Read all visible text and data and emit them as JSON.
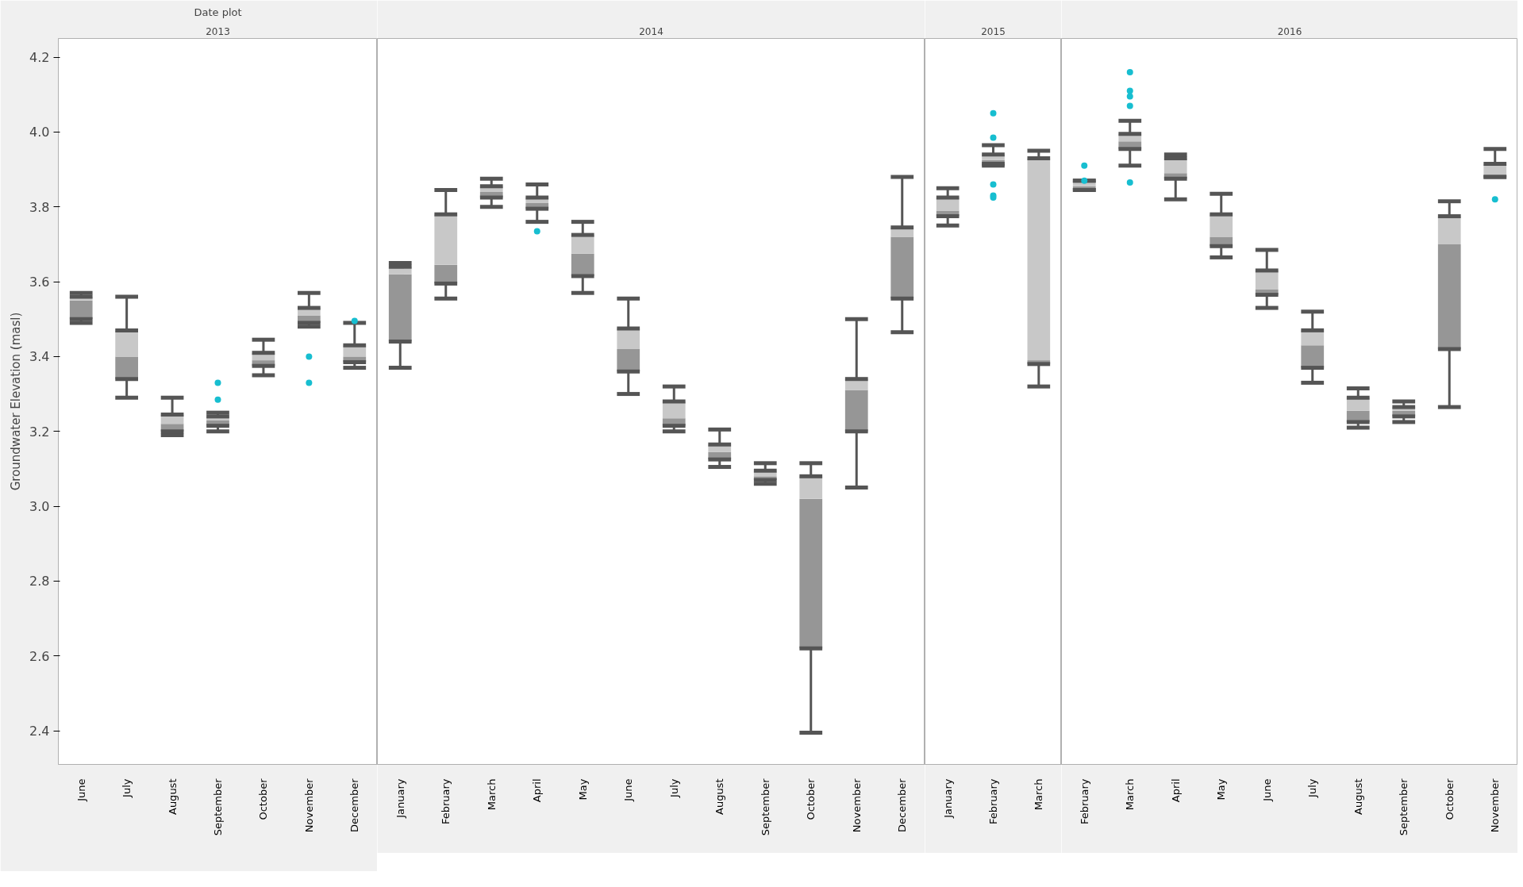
{
  "chart_data": [
    {
      "type": "box",
      "title": "Date plot",
      "subtitle": "2013",
      "ylabel": "Groundwater Elevation (masl)",
      "ylim": [
        2.31,
        4.25
      ],
      "yticks": [
        2.4,
        2.6,
        2.8,
        {
          "value": 3,
          "label": "3.0"
        },
        3.2,
        3.4,
        3.6,
        3.8,
        {
          "value": 4,
          "label": "4.0"
        },
        4.2
      ],
      "grid": false,
      "categories": [
        "June",
        "July",
        "August",
        "September",
        "October",
        "November",
        "December"
      ],
      "series": [
        {
          "color": "#969696",
          "boxes": [
            {
              "low": 3.49,
              "q1": 3.5,
              "median": 3.55,
              "q3": 3.56,
              "high": 3.57
            },
            {
              "low": 3.29,
              "q1": 3.34,
              "median": 3.4,
              "q3": 3.47,
              "high": 3.56
            },
            {
              "low": 3.19,
              "q1": 3.2,
              "median": 3.22,
              "q3": 3.245,
              "high": 3.29
            },
            {
              "low": 3.2,
              "q1": 3.215,
              "median": 3.23,
              "q3": 3.24,
              "high": 3.25,
              "outliers": [
                3.33,
                3.285
              ]
            },
            {
              "low": 3.35,
              "q1": 3.375,
              "median": 3.39,
              "q3": 3.41,
              "high": 3.445
            },
            {
              "low": 3.48,
              "q1": 3.49,
              "median": 3.51,
              "q3": 3.53,
              "high": 3.57,
              "outliers": [
                3.4,
                3.33
              ]
            },
            {
              "low": 3.37,
              "q1": 3.385,
              "median": 3.4,
              "q3": 3.43,
              "high": 3.49,
              "outliers": [
                3.495
              ]
            }
          ]
        }
      ]
    },
    {
      "type": "box",
      "subtitle": "2014",
      "ylim": [
        2.31,
        4.25
      ],
      "yticks": [
        2.4,
        2.6,
        2.8,
        3.0,
        3.2,
        3.4,
        3.6,
        3.8,
        4.0,
        4.2
      ],
      "grid": false,
      "tick_labels": "x",
      "categories": [
        "January",
        "February",
        "March",
        "April",
        "May",
        "June",
        "July",
        "August",
        "September",
        "October",
        "November",
        "December"
      ],
      "series": [
        {
          "color": "#969696",
          "boxes": [
            {
              "low": 3.37,
              "q1": 3.44,
              "median": 3.62,
              "q3": 3.64,
              "high": 3.65
            },
            {
              "low": 3.555,
              "q1": 3.595,
              "median": 3.645,
              "q3": 3.78,
              "high": 3.845
            },
            {
              "low": 3.8,
              "q1": 3.825,
              "median": 3.84,
              "q3": 3.855,
              "high": 3.875
            },
            {
              "low": 3.76,
              "q1": 3.795,
              "median": 3.81,
              "q3": 3.825,
              "high": 3.86,
              "outliers": [
                3.735
              ]
            },
            {
              "low": 3.57,
              "q1": 3.615,
              "median": 3.675,
              "q3": 3.725,
              "high": 3.76
            },
            {
              "low": 3.3,
              "q1": 3.36,
              "median": 3.42,
              "q3": 3.475,
              "high": 3.555
            },
            {
              "low": 3.2,
              "q1": 3.215,
              "median": 3.235,
              "q3": 3.28,
              "high": 3.32
            },
            {
              "low": 3.105,
              "q1": 3.125,
              "median": 3.145,
              "q3": 3.165,
              "high": 3.205
            },
            {
              "low": 3.06,
              "q1": 3.07,
              "median": 3.08,
              "q3": 3.095,
              "high": 3.115
            },
            {
              "low": 2.395,
              "q1": 2.62,
              "median": 3.02,
              "q3": 3.08,
              "high": 3.115
            },
            {
              "low": 3.05,
              "q1": 3.2,
              "median": 3.31,
              "q3": 3.34,
              "high": 3.5
            },
            {
              "low": 3.465,
              "q1": 3.555,
              "median": 3.72,
              "q3": 3.745,
              "high": 3.88
            }
          ]
        }
      ]
    },
    {
      "type": "box",
      "subtitle": "2015",
      "ylim": [
        2.31,
        4.25
      ],
      "yticks": [
        2.4,
        2.6,
        2.8,
        3.0,
        3.2,
        3.4,
        3.6,
        3.8,
        4.0,
        4.2
      ],
      "grid": false,
      "tick_labels": "x",
      "categories": [
        "January",
        "February",
        "March"
      ],
      "series": [
        {
          "color": "#969696",
          "boxes": [
            {
              "low": 3.75,
              "q1": 3.775,
              "median": 3.79,
              "q3": 3.825,
              "high": 3.85
            },
            {
              "low": 3.91,
              "q1": 3.915,
              "median": 3.925,
              "q3": 3.94,
              "high": 3.965,
              "outliers": [
                4.05,
                3.985,
                3.86,
                3.83,
                3.825
              ]
            },
            {
              "low": 3.32,
              "q1": 3.38,
              "median": 3.39,
              "q3": 3.93,
              "high": 3.95
            }
          ]
        }
      ]
    },
    {
      "type": "box",
      "subtitle": "2016",
      "ylim": [
        2.31,
        4.25
      ],
      "yticks": [
        2.4,
        2.6,
        2.8,
        3.0,
        3.2,
        3.4,
        3.6,
        3.8,
        4.0,
        4.2
      ],
      "grid": false,
      "tick_labels": "x",
      "categories": [
        "February",
        "March",
        "April",
        "May",
        "June",
        "July",
        "August",
        "September",
        "October",
        "November"
      ],
      "series": [
        {
          "color": "#969696",
          "boxes": [
            {
              "low": 3.845,
              "q1": 3.845,
              "median": 3.855,
              "q3": 3.87,
              "high": 3.87,
              "outliers": [
                3.91,
                3.87
              ]
            },
            {
              "low": 3.91,
              "q1": 3.955,
              "median": 3.975,
              "q3": 3.995,
              "high": 4.03,
              "outliers": [
                4.16,
                4.11,
                4.095,
                4.07,
                3.865
              ]
            },
            {
              "low": 3.82,
              "q1": 3.875,
              "median": 3.89,
              "q3": 3.93,
              "high": 3.94
            },
            {
              "low": 3.665,
              "q1": 3.695,
              "median": 3.72,
              "q3": 3.78,
              "high": 3.835
            },
            {
              "low": 3.53,
              "q1": 3.565,
              "median": 3.58,
              "q3": 3.63,
              "high": 3.685
            },
            {
              "low": 3.33,
              "q1": 3.37,
              "median": 3.43,
              "q3": 3.47,
              "high": 3.52
            },
            {
              "low": 3.21,
              "q1": 3.225,
              "median": 3.255,
              "q3": 3.29,
              "high": 3.315
            },
            {
              "low": 3.225,
              "q1": 3.24,
              "median": 3.255,
              "q3": 3.265,
              "high": 3.28
            },
            {
              "low": 3.265,
              "q1": 3.42,
              "median": 3.7,
              "q3": 3.775,
              "high": 3.815
            },
            {
              "low": 3.88,
              "q1": 3.88,
              "median": 3.885,
              "q3": 3.915,
              "high": 3.955,
              "outliers": [
                3.82
              ]
            }
          ]
        }
      ]
    }
  ]
}
